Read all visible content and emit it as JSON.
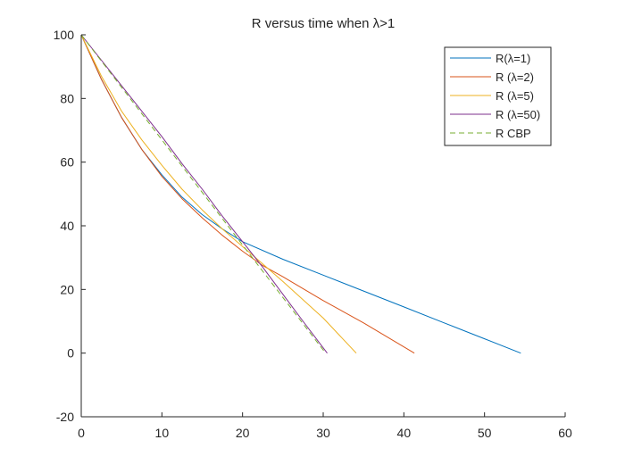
{
  "chart_data": {
    "type": "line",
    "title": "R versus time when λ>1",
    "xlabel": "",
    "ylabel": "",
    "xlim": [
      0,
      60
    ],
    "ylim": [
      -20,
      100
    ],
    "xticks": [
      "0",
      "10",
      "20",
      "30",
      "40",
      "50",
      "60"
    ],
    "yticks": [
      "-20",
      "0",
      "20",
      "40",
      "60",
      "80",
      "100"
    ],
    "grid": false,
    "legend_position": "top-right",
    "series": [
      {
        "name": "R(λ=1)",
        "color": "#0072BD",
        "dash": "solid",
        "x": [
          0,
          2.5,
          5,
          7.5,
          10,
          12.5,
          15,
          17.5,
          20,
          25,
          30,
          35,
          40,
          45,
          50,
          54.5
        ],
        "y": [
          100,
          86,
          74,
          64,
          56,
          49,
          43.5,
          39,
          35,
          29.5,
          24.5,
          19.5,
          14.5,
          9.5,
          4.5,
          0
        ]
      },
      {
        "name": "R (λ=2)",
        "color": "#D95319",
        "dash": "solid",
        "x": [
          0,
          2.5,
          5,
          7.5,
          10,
          12.5,
          15,
          17.5,
          20,
          22.5,
          25,
          30,
          35,
          41.3
        ],
        "y": [
          100,
          86,
          74,
          64,
          55.5,
          48.5,
          42.5,
          37,
          32,
          27.5,
          24,
          16.5,
          9.5,
          0
        ]
      },
      {
        "name": "R (λ=5)",
        "color": "#EDB120",
        "dash": "solid",
        "x": [
          0,
          2.5,
          5,
          7.5,
          10,
          12.5,
          15,
          17.5,
          20,
          22.5,
          25,
          30,
          34.1
        ],
        "y": [
          100,
          87,
          76,
          67,
          59,
          51.5,
          45,
          39,
          33.5,
          28,
          22.5,
          11,
          0
        ]
      },
      {
        "name": "R (λ=50)",
        "color": "#7E2F8E",
        "dash": "solid",
        "x": [
          0,
          2.5,
          5,
          7.5,
          10,
          12.5,
          15,
          17.5,
          20,
          22.5,
          25,
          27.5,
          30.5
        ],
        "y": [
          100,
          92,
          84,
          76,
          68,
          59.5,
          51.5,
          43,
          35,
          27,
          18.5,
          10,
          0
        ]
      },
      {
        "name": "R CBP",
        "color": "#77AC30",
        "dash": "dashed",
        "x": [
          0,
          30.3
        ],
        "y": [
          100,
          0
        ]
      }
    ]
  }
}
